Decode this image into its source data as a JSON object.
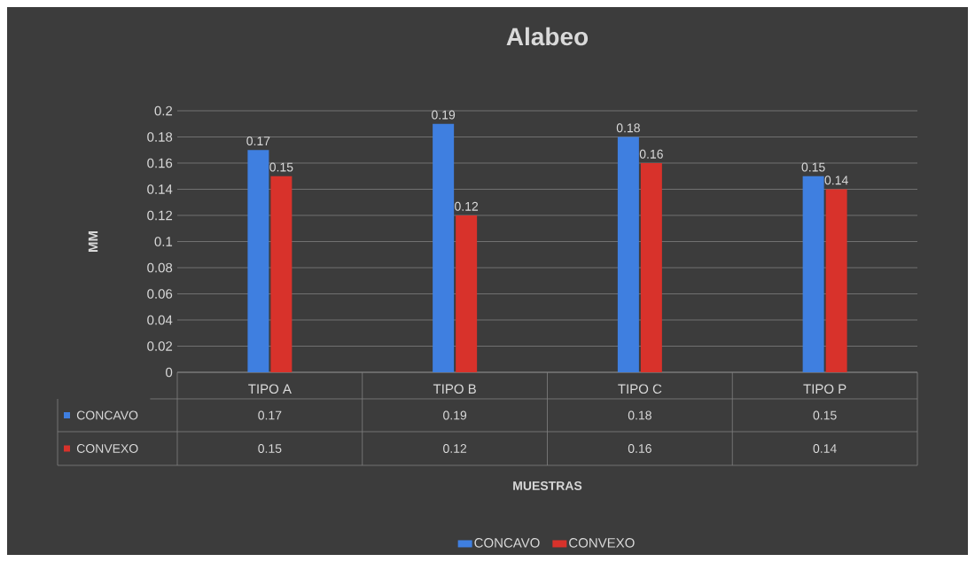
{
  "chart_data": {
    "type": "bar",
    "title": "Alabeo",
    "annotations": [
      "MUESTRAS"
    ],
    "ylabel": "MM",
    "categories": [
      "TIPO A",
      "TIPO B",
      "TIPO C",
      "TIPO P"
    ],
    "series": [
      {
        "name": "CONCAVO",
        "color": "#3f7fe0",
        "values": [
          0.17,
          0.19,
          0.18,
          0.15
        ],
        "value_labels": [
          "0.17",
          "0.19",
          "0.18",
          "0.15"
        ]
      },
      {
        "name": "CONVEXO",
        "color": "#d8322b",
        "values": [
          0.15,
          0.12,
          0.16,
          0.14
        ],
        "value_labels": [
          "0.15",
          "0.12",
          "0.16",
          "0.14"
        ]
      }
    ],
    "ylim": [
      0,
      0.2
    ],
    "yticks": [
      0,
      0.02,
      0.04,
      0.06,
      0.08,
      0.1,
      0.12,
      0.14,
      0.16,
      0.18,
      0.2
    ],
    "grid": "y",
    "legend": "bottom"
  }
}
